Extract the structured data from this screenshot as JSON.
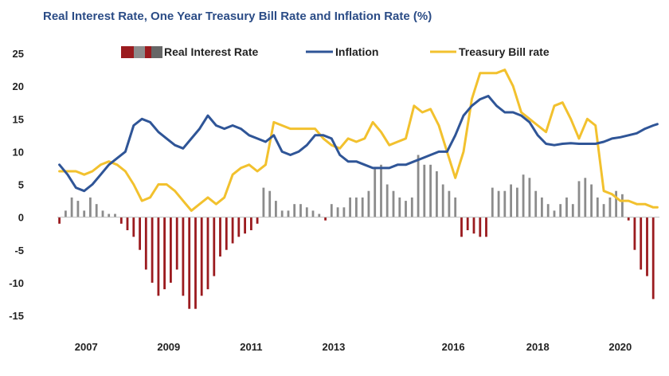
{
  "title": "Real Interest Rate, One Year Treasury Bill  Rate and Inflation Rate (%)",
  "chart_data": {
    "type": "line",
    "title": "Real Interest Rate, One Year Treasury Bill  Rate and Inflation Rate (%)",
    "xlabel": "",
    "ylabel": "",
    "ylim": [
      -15,
      25
    ],
    "yticks": [
      25,
      20,
      15,
      10,
      5,
      0,
      -5,
      -10,
      -15
    ],
    "xticks": [
      "2007",
      "2009",
      "2011",
      "2013",
      "2016",
      "2018",
      "2020"
    ],
    "xtick_positions": [
      2007.0,
      2009.0,
      2011.0,
      2013.0,
      2015.9,
      2017.95,
      2019.95
    ],
    "xlim": [
      2006.3,
      2020.9
    ],
    "grid": false,
    "legend": "top",
    "colors": {
      "real_negative": "#9b1b1f",
      "real_positive": "#8c8c8c",
      "inflation": "#2f5597",
      "tbill": "#f2c12e",
      "title": "#2b4c86"
    },
    "legend_entries": [
      "Real Interest Rate",
      "Inflation",
      "Treasury Bill rate"
    ],
    "series": [
      {
        "name": "Inflation",
        "kind": "line",
        "x": [
          2006.35,
          2006.55,
          2006.75,
          2006.95,
          2007.15,
          2007.35,
          2007.55,
          2007.75,
          2007.95,
          2008.15,
          2008.35,
          2008.55,
          2008.75,
          2008.95,
          2009.15,
          2009.35,
          2009.55,
          2009.75,
          2009.95,
          2010.15,
          2010.35,
          2010.55,
          2010.75,
          2010.95,
          2011.15,
          2011.35,
          2011.55,
          2011.75,
          2011.95,
          2012.15,
          2012.35,
          2012.55,
          2012.75,
          2012.95,
          2013.15,
          2013.35,
          2013.55,
          2013.75,
          2013.95,
          2014.15,
          2014.35,
          2014.55,
          2014.75,
          2014.95,
          2015.15,
          2015.35,
          2015.55,
          2015.75,
          2015.95,
          2016.15,
          2016.35,
          2016.55,
          2016.75,
          2016.95,
          2017.15,
          2017.35,
          2017.55,
          2017.75,
          2017.95,
          2018.15,
          2018.35,
          2018.55,
          2018.75,
          2018.95,
          2019.15,
          2019.35,
          2019.55,
          2019.75,
          2019.95,
          2020.15,
          2020.35,
          2020.55,
          2020.75,
          2020.85
        ],
        "y": [
          8,
          6.5,
          4.5,
          4,
          5,
          6.5,
          8,
          9,
          10,
          14,
          15,
          14.5,
          13,
          12,
          11,
          10.5,
          12,
          13.5,
          15.5,
          14,
          13.5,
          14,
          13.5,
          12.5,
          12,
          11.5,
          12.5,
          10,
          9.5,
          10,
          11,
          12.5,
          12.5,
          12,
          9.5,
          8.5,
          8.5,
          8,
          7.5,
          7.5,
          7.5,
          8,
          8,
          8.5,
          9,
          9.5,
          10,
          10,
          12.5,
          15.5,
          17,
          18,
          18.5,
          17,
          16,
          16,
          15.5,
          14.5,
          12.5,
          11.2,
          11,
          11.2,
          11.3,
          11.2,
          11.2,
          11.2,
          11.5,
          12,
          12.2,
          12.5,
          12.8,
          13.5,
          14,
          14.2
        ]
      },
      {
        "name": "Treasury Bill rate",
        "kind": "line",
        "x": [
          2006.35,
          2006.55,
          2006.75,
          2006.95,
          2007.15,
          2007.35,
          2007.55,
          2007.75,
          2007.95,
          2008.15,
          2008.35,
          2008.55,
          2008.75,
          2008.95,
          2009.15,
          2009.35,
          2009.55,
          2009.75,
          2009.95,
          2010.15,
          2010.35,
          2010.55,
          2010.75,
          2010.95,
          2011.15,
          2011.35,
          2011.55,
          2011.75,
          2011.95,
          2012.15,
          2012.35,
          2012.55,
          2012.75,
          2012.95,
          2013.15,
          2013.35,
          2013.55,
          2013.75,
          2013.95,
          2014.15,
          2014.35,
          2014.55,
          2014.75,
          2014.95,
          2015.15,
          2015.35,
          2015.55,
          2015.75,
          2015.95,
          2016.15,
          2016.35,
          2016.55,
          2016.75,
          2016.95,
          2017.15,
          2017.35,
          2017.55,
          2017.75,
          2017.95,
          2018.15,
          2018.35,
          2018.55,
          2018.75,
          2018.95,
          2019.15,
          2019.35,
          2019.55,
          2019.75,
          2019.95,
          2020.15,
          2020.35,
          2020.55,
          2020.75,
          2020.85
        ],
        "y": [
          7,
          7,
          7,
          6.5,
          7,
          8,
          8.5,
          8,
          7,
          5,
          2.5,
          3,
          5,
          5,
          4,
          2.5,
          1,
          2,
          3,
          2,
          3,
          6.5,
          7.5,
          8,
          7,
          8,
          14.5,
          14,
          13.5,
          13.5,
          13.5,
          13.5,
          12,
          11,
          10.5,
          12,
          11.5,
          12,
          14.5,
          13,
          11,
          11.5,
          12,
          17,
          16,
          16.5,
          14,
          10,
          6,
          10,
          18,
          22,
          22,
          22,
          22.5,
          20,
          16,
          15,
          14,
          13,
          17,
          17.5,
          15,
          12,
          15,
          14,
          4,
          3.5,
          2.5,
          2.5,
          2,
          2,
          1.5,
          1.5
        ]
      },
      {
        "name": "Real Interest Rate",
        "kind": "bar",
        "x": [
          2006.35,
          2006.5,
          2006.65,
          2006.8,
          2006.95,
          2007.1,
          2007.25,
          2007.4,
          2007.55,
          2007.7,
          2007.85,
          2008.0,
          2008.15,
          2008.3,
          2008.45,
          2008.6,
          2008.75,
          2008.9,
          2009.05,
          2009.2,
          2009.35,
          2009.5,
          2009.65,
          2009.8,
          2009.95,
          2010.1,
          2010.25,
          2010.4,
          2010.55,
          2010.7,
          2010.85,
          2011.0,
          2011.15,
          2011.3,
          2011.45,
          2011.6,
          2011.75,
          2011.9,
          2012.05,
          2012.2,
          2012.35,
          2012.5,
          2012.65,
          2012.8,
          2012.95,
          2013.1,
          2013.25,
          2013.4,
          2013.55,
          2013.7,
          2013.85,
          2014.0,
          2014.15,
          2014.3,
          2014.45,
          2014.6,
          2014.75,
          2014.9,
          2015.05,
          2015.2,
          2015.35,
          2015.5,
          2015.65,
          2015.8,
          2015.95,
          2016.1,
          2016.25,
          2016.4,
          2016.55,
          2016.7,
          2016.85,
          2017.0,
          2017.15,
          2017.3,
          2017.45,
          2017.6,
          2017.75,
          2017.9,
          2018.05,
          2018.2,
          2018.35,
          2018.5,
          2018.65,
          2018.8,
          2018.95,
          2019.1,
          2019.25,
          2019.4,
          2019.55,
          2019.7,
          2019.85,
          2020.0,
          2020.15,
          2020.3,
          2020.45,
          2020.6,
          2020.75
        ],
        "y": [
          -1,
          1,
          3,
          2.5,
          1,
          3,
          2,
          1,
          0.5,
          0.5,
          -1,
          -2,
          -3,
          -5,
          -8,
          -10,
          -12,
          -11,
          -10,
          -8,
          -12,
          -14,
          -14,
          -12,
          -11,
          -9,
          -6,
          -5,
          -4,
          -3,
          -2.5,
          -2,
          -1,
          4.5,
          4,
          2.5,
          1,
          1,
          2,
          2,
          1.5,
          1,
          0.5,
          -0.5,
          2,
          1.5,
          1.5,
          3,
          3,
          3,
          4,
          7.5,
          8,
          5,
          4,
          3,
          2.5,
          3,
          9.5,
          8,
          8,
          7,
          5,
          4,
          3,
          -3,
          -2,
          -2.5,
          -3,
          -3,
          4.5,
          4,
          4,
          5,
          4.5,
          6.5,
          6,
          4,
          3,
          2,
          1,
          2,
          3,
          2,
          5.5,
          6,
          5,
          3,
          2,
          3,
          4,
          3.5,
          -0.5,
          -5,
          -8,
          -9,
          -12.5
        ]
      }
    ]
  }
}
